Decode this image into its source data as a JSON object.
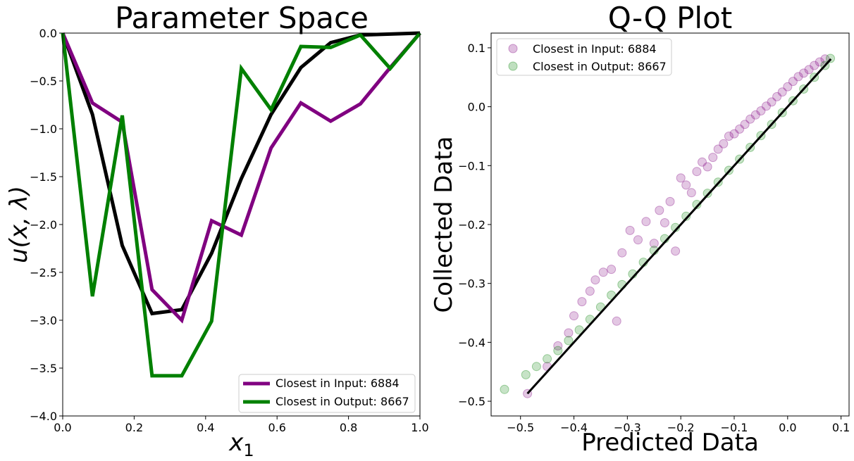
{
  "chart_data": [
    {
      "type": "line",
      "title": "Parameter Space",
      "xlabel": "x",
      "xlabel_sub": "1",
      "ylabel": "u(x, λ)",
      "xlim": [
        0,
        1
      ],
      "ylim": [
        -4,
        0
      ],
      "xticks": [
        "0.0",
        "0.2",
        "0.4",
        "0.6",
        "0.8",
        "1.0"
      ],
      "yticks": [
        "0.0",
        "−0.5",
        "−1.0",
        "−1.5",
        "−2.0",
        "−2.5",
        "−3.0",
        "−3.5",
        "−4.0"
      ],
      "legend_position": "lower-right",
      "series": [
        {
          "name": "",
          "color": "#000000",
          "x": [
            0,
            0.0833,
            0.1667,
            0.25,
            0.3333,
            0.4167,
            0.5,
            0.5833,
            0.6667,
            0.75,
            0.8333,
            0.9167,
            1.0
          ],
          "y": [
            0,
            -0.85,
            -2.22,
            -2.93,
            -2.89,
            -2.3,
            -1.52,
            -0.85,
            -0.36,
            -0.1,
            -0.02,
            -0.01,
            0
          ]
        },
        {
          "name": "Closest in Input: 6884",
          "color": "#800080",
          "x": [
            0,
            0.0833,
            0.1667,
            0.25,
            0.3333,
            0.4167,
            0.5,
            0.5833,
            0.6667,
            0.75,
            0.8333,
            0.9167,
            1.0
          ],
          "y": [
            0,
            -0.73,
            -0.93,
            -2.68,
            -3.0,
            -1.96,
            -2.11,
            -1.2,
            -0.73,
            -0.92,
            -0.74,
            -0.36,
            0
          ]
        },
        {
          "name": "Closest in Output: 8667",
          "color": "#008000",
          "x": [
            0,
            0.0833,
            0.1667,
            0.25,
            0.3333,
            0.4167,
            0.5,
            0.5833,
            0.6667,
            0.75,
            0.8333,
            0.9167,
            1.0
          ],
          "y": [
            0,
            -2.75,
            -0.86,
            -3.58,
            -3.58,
            -3.01,
            -0.37,
            -0.8,
            -0.14,
            -0.15,
            -0.02,
            -0.37,
            0
          ]
        }
      ]
    },
    {
      "type": "scatter",
      "title": "Q-Q Plot",
      "xlabel": "Predicted Data",
      "ylabel": "Collected Data",
      "xlim": [
        -0.555,
        0.115
      ],
      "ylim": [
        -0.525,
        0.125
      ],
      "xticks": [
        "−0.5",
        "−0.4",
        "−0.3",
        "−0.2",
        "−0.1",
        "0.0",
        "0.1"
      ],
      "yticks": [
        "0.1",
        "0.0",
        "−0.1",
        "−0.2",
        "−0.3",
        "−0.4",
        "−0.5"
      ],
      "legend_position": "upper-left",
      "reference_line": {
        "color": "#000000",
        "x": [
          -0.487,
          0.081
        ],
        "y": [
          -0.487,
          0.081
        ]
      },
      "series": [
        {
          "name": "Closest in Input: 6884",
          "color": "#800080",
          "points": [
            [
              -0.487,
              -0.487
            ],
            [
              -0.45,
              -0.441
            ],
            [
              -0.43,
              -0.406
            ],
            [
              -0.41,
              -0.384
            ],
            [
              -0.4,
              -0.355
            ],
            [
              -0.385,
              -0.331
            ],
            [
              -0.37,
              -0.313
            ],
            [
              -0.36,
              -0.294
            ],
            [
              -0.345,
              -0.281
            ],
            [
              -0.33,
              -0.276
            ],
            [
              -0.32,
              -0.364
            ],
            [
              -0.31,
              -0.248
            ],
            [
              -0.295,
              -0.21
            ],
            [
              -0.28,
              -0.226
            ],
            [
              -0.265,
              -0.195
            ],
            [
              -0.25,
              -0.232
            ],
            [
              -0.24,
              -0.176
            ],
            [
              -0.23,
              -0.197
            ],
            [
              -0.22,
              -0.161
            ],
            [
              -0.21,
              -0.245
            ],
            [
              -0.2,
              -0.121
            ],
            [
              -0.19,
              -0.133
            ],
            [
              -0.18,
              -0.146
            ],
            [
              -0.17,
              -0.11
            ],
            [
              -0.16,
              -0.094
            ],
            [
              -0.15,
              -0.102
            ],
            [
              -0.14,
              -0.086
            ],
            [
              -0.13,
              -0.072
            ],
            [
              -0.12,
              -0.063
            ],
            [
              -0.11,
              -0.05
            ],
            [
              -0.1,
              -0.046
            ],
            [
              -0.09,
              -0.038
            ],
            [
              -0.08,
              -0.03
            ],
            [
              -0.07,
              -0.021
            ],
            [
              -0.06,
              -0.014
            ],
            [
              -0.05,
              -0.007
            ],
            [
              -0.04,
              0.001
            ],
            [
              -0.03,
              0.008
            ],
            [
              -0.02,
              0.017
            ],
            [
              -0.01,
              0.025
            ],
            [
              0.0,
              0.034
            ],
            [
              0.01,
              0.043
            ],
            [
              0.02,
              0.051
            ],
            [
              0.03,
              0.057
            ],
            [
              0.04,
              0.063
            ],
            [
              0.05,
              0.07
            ],
            [
              0.06,
              0.076
            ],
            [
              0.07,
              0.081
            ]
          ]
        },
        {
          "name": "Closest in Output: 8667",
          "color": "#008000",
          "points": [
            [
              -0.53,
              -0.48
            ],
            [
              -0.49,
              -0.455
            ],
            [
              -0.47,
              -0.441
            ],
            [
              -0.45,
              -0.428
            ],
            [
              -0.43,
              -0.414
            ],
            [
              -0.41,
              -0.397
            ],
            [
              -0.39,
              -0.379
            ],
            [
              -0.37,
              -0.361
            ],
            [
              -0.35,
              -0.34
            ],
            [
              -0.33,
              -0.32
            ],
            [
              -0.31,
              -0.302
            ],
            [
              -0.29,
              -0.284
            ],
            [
              -0.27,
              -0.264
            ],
            [
              -0.25,
              -0.244
            ],
            [
              -0.23,
              -0.224
            ],
            [
              -0.21,
              -0.205
            ],
            [
              -0.19,
              -0.186
            ],
            [
              -0.17,
              -0.166
            ],
            [
              -0.15,
              -0.147
            ],
            [
              -0.13,
              -0.128
            ],
            [
              -0.11,
              -0.108
            ],
            [
              -0.09,
              -0.089
            ],
            [
              -0.07,
              -0.069
            ],
            [
              -0.05,
              -0.049
            ],
            [
              -0.03,
              -0.03
            ],
            [
              -0.01,
              -0.01
            ],
            [
              0.01,
              0.01
            ],
            [
              0.03,
              0.03
            ],
            [
              0.05,
              0.05
            ],
            [
              0.07,
              0.07
            ],
            [
              0.08,
              0.082
            ]
          ]
        }
      ]
    }
  ]
}
